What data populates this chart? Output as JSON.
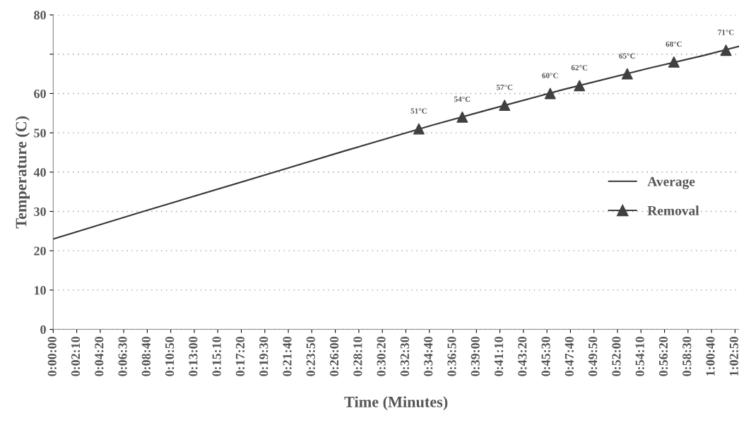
{
  "chart_data": {
    "type": "line",
    "xlabel": "Time (Minutes)",
    "ylabel": "Temperature (C)",
    "xlim": [
      0,
      63.2
    ],
    "ylim": [
      0,
      80
    ],
    "xticks": [
      {
        "value": 0,
        "label": "0:00:00"
      },
      {
        "value": 2.1667,
        "label": "0:02:10"
      },
      {
        "value": 4.3333,
        "label": "0:04:20"
      },
      {
        "value": 6.5,
        "label": "0:06:30"
      },
      {
        "value": 8.6667,
        "label": "0:08:40"
      },
      {
        "value": 10.8333,
        "label": "0:10:50"
      },
      {
        "value": 13,
        "label": "0:13:00"
      },
      {
        "value": 15.1667,
        "label": "0:15:10"
      },
      {
        "value": 17.3333,
        "label": "0:17:20"
      },
      {
        "value": 19.5,
        "label": "0:19:30"
      },
      {
        "value": 21.6667,
        "label": "0:21:40"
      },
      {
        "value": 23.8333,
        "label": "0:23:50"
      },
      {
        "value": 26,
        "label": "0:26:00"
      },
      {
        "value": 28.1667,
        "label": "0:28:10"
      },
      {
        "value": 30.3333,
        "label": "0:30:20"
      },
      {
        "value": 32.5,
        "label": "0:32:30"
      },
      {
        "value": 34.6667,
        "label": "0:34:40"
      },
      {
        "value": 36.8333,
        "label": "0:36:50"
      },
      {
        "value": 39,
        "label": "0:39:00"
      },
      {
        "value": 41.1667,
        "label": "0:41:10"
      },
      {
        "value": 43.3333,
        "label": "0:43:20"
      },
      {
        "value": 45.5,
        "label": "0:45:30"
      },
      {
        "value": 47.6667,
        "label": "0:47:40"
      },
      {
        "value": 49.8333,
        "label": "0:49:50"
      },
      {
        "value": 52,
        "label": "0:52:00"
      },
      {
        "value": 54.1667,
        "label": "0:54:10"
      },
      {
        "value": 56.3333,
        "label": "0:56:20"
      },
      {
        "value": 58.5,
        "label": "0:58:30"
      },
      {
        "value": 60.6667,
        "label": "1:00:40"
      },
      {
        "value": 62.8333,
        "label": "1:02:50"
      }
    ],
    "yticks": [
      0,
      10,
      20,
      30,
      40,
      50,
      60,
      {
        "value": 70,
        "label": null
      },
      80
    ],
    "grid": "y",
    "legend": "right",
    "series": [
      {
        "name": "Average",
        "color": "#3a3a3a",
        "marker": "none",
        "x": [
          0,
          8.3,
          20.4,
          27,
          35,
          40,
          47,
          55,
          60,
          63.2
        ],
        "values": [
          23,
          30,
          40,
          45.5,
          52,
          55.8,
          61,
          66.5,
          69.7,
          72
        ]
      },
      {
        "name": "Removal",
        "type": "scatter",
        "color": "#404040",
        "marker": "triangle",
        "x": [
          33.7,
          37.7,
          41.6,
          45.8,
          48.5,
          52.9,
          57.2,
          62.0
        ],
        "values": [
          51,
          54,
          57,
          60,
          62,
          65,
          68,
          71
        ],
        "value_labels": [
          "51°C",
          "54°C",
          "57°C",
          "60°C",
          "62°C",
          "65°C",
          "68°C",
          "71°C"
        ]
      }
    ]
  }
}
